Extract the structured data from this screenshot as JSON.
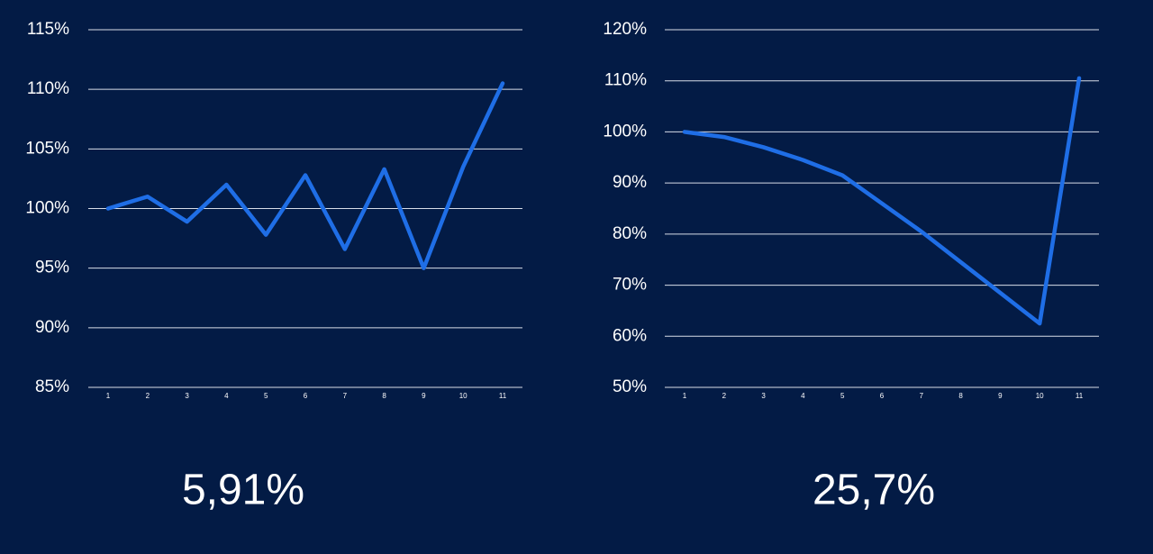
{
  "chart_data": [
    {
      "type": "line",
      "categories": [
        "1",
        "2",
        "3",
        "4",
        "5",
        "6",
        "7",
        "8",
        "9",
        "10",
        "11"
      ],
      "series": [
        {
          "color": "#1f6ee6",
          "values": [
            100,
            101,
            98.9,
            102,
            97.8,
            102.8,
            96.6,
            103.3,
            95,
            103.5,
            110.5
          ]
        }
      ],
      "ylim": [
        85,
        115
      ],
      "yticks": [
        {
          "value": 85,
          "label": "85%"
        },
        {
          "value": 90,
          "label": "90%"
        },
        {
          "value": 95,
          "label": "95%"
        },
        {
          "value": 100,
          "label": "100%"
        },
        {
          "value": 105,
          "label": "105%"
        },
        {
          "value": 110,
          "label": "110%"
        },
        {
          "value": 115,
          "label": "115%"
        }
      ],
      "grid": true,
      "annotation": "5,91%"
    },
    {
      "type": "line",
      "categories": [
        "1",
        "2",
        "3",
        "4",
        "5",
        "6",
        "7",
        "8",
        "9",
        "10",
        "11"
      ],
      "series": [
        {
          "color": "#1f6ee6",
          "values": [
            100,
            99,
            97,
            94.5,
            91.5,
            86,
            80.5,
            74.5,
            68.5,
            62.5,
            110.5
          ]
        }
      ],
      "ylim": [
        50,
        120
      ],
      "yticks": [
        {
          "value": 50,
          "label": "50%"
        },
        {
          "value": 60,
          "label": "60%"
        },
        {
          "value": 70,
          "label": "70%"
        },
        {
          "value": 80,
          "label": "80%"
        },
        {
          "value": 90,
          "label": "90%"
        },
        {
          "value": 100,
          "label": "100%"
        },
        {
          "value": 110,
          "label": "110%"
        },
        {
          "value": 120,
          "label": "120%"
        }
      ],
      "grid": true,
      "annotation": "25,7%"
    }
  ]
}
